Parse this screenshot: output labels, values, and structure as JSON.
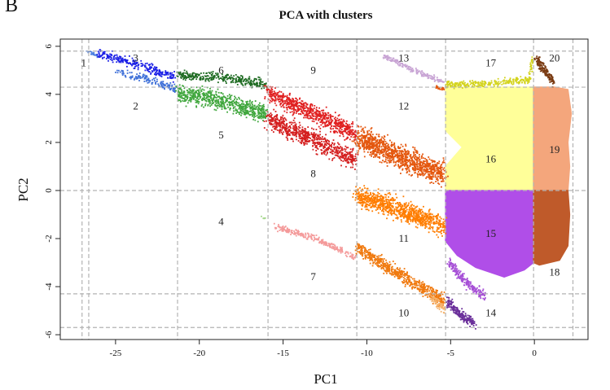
{
  "panel_label": "B",
  "chart_data": {
    "type": "scatter",
    "title": "PCA with clusters",
    "xlabel": "PC1",
    "ylabel": "PC2",
    "xlim": [
      -28.3,
      3.2
    ],
    "ylim": [
      -6.2,
      6.3
    ],
    "x_ticks": [
      -25,
      -20,
      -15,
      -10,
      -5,
      0
    ],
    "x_tick_labels": [
      "-25",
      "-20",
      "-15",
      "-10",
      "-5",
      "0"
    ],
    "y_ticks": [
      -6,
      -4,
      -2,
      0,
      2,
      4,
      6
    ],
    "y_tick_labels": [
      "-6",
      "-4",
      "-2",
      "0",
      "2",
      "4",
      "6"
    ],
    "grid": "dashed cluster boundaries",
    "grid_x": [
      -27.0,
      -26.6,
      -21.3,
      -15.9,
      -10.6,
      -5.3,
      -0.05,
      2.3
    ],
    "grid_y": [
      -5.7,
      -4.3,
      0,
      4.3,
      5.8
    ],
    "regions": [
      {
        "label": "1",
        "x": -26.9,
        "y": 5.3
      },
      {
        "label": "2",
        "x": -23.8,
        "y": 3.5
      },
      {
        "label": "3",
        "x": -23.8,
        "y": 5.5
      },
      {
        "label": "4",
        "x": -18.7,
        "y": -1.3
      },
      {
        "label": "5",
        "x": -18.7,
        "y": 2.3
      },
      {
        "label": "6",
        "x": -18.7,
        "y": 5.0
      },
      {
        "label": "7",
        "x": -13.2,
        "y": -3.6
      },
      {
        "label": "8",
        "x": -13.2,
        "y": 0.7
      },
      {
        "label": "9",
        "x": -13.2,
        "y": 5.0
      },
      {
        "label": "10",
        "x": -7.8,
        "y": -5.1
      },
      {
        "label": "11",
        "x": -7.8,
        "y": -2.0
      },
      {
        "label": "12",
        "x": -7.8,
        "y": 3.5
      },
      {
        "label": "13",
        "x": -7.8,
        "y": 5.5
      },
      {
        "label": "14",
        "x": -2.6,
        "y": -5.1
      },
      {
        "label": "15",
        "x": -2.6,
        "y": -1.8
      },
      {
        "label": "16",
        "x": -2.6,
        "y": 1.3
      },
      {
        "label": "17",
        "x": -2.6,
        "y": 5.3
      },
      {
        "label": "18",
        "x": 1.2,
        "y": -3.4
      },
      {
        "label": "19",
        "x": 1.2,
        "y": 1.7
      },
      {
        "label": "20",
        "x": 1.2,
        "y": 5.5
      }
    ],
    "clusters": [
      {
        "id": "1",
        "color": "#4a7fe0",
        "spine": [
          [
            -26.7,
            5.8
          ],
          [
            -26.1,
            5.6
          ]
        ],
        "width": 0.12,
        "n": 20
      },
      {
        "id": "3",
        "color": "#1a1fe6",
        "spine": [
          [
            -26.0,
            5.7
          ],
          [
            -23.5,
            5.2
          ],
          [
            -21.4,
            4.7
          ]
        ],
        "width": 0.28,
        "n": 260
      },
      {
        "id": "2",
        "color": "#3d6fd8",
        "spine": [
          [
            -25.0,
            5.0
          ],
          [
            -23.0,
            4.6
          ],
          [
            -21.4,
            4.2
          ]
        ],
        "width": 0.25,
        "n": 150
      },
      {
        "id": "6",
        "color": "#1e6b22",
        "spine": [
          [
            -21.3,
            4.8
          ],
          [
            -18.5,
            4.7
          ],
          [
            -16.0,
            4.4
          ]
        ],
        "width": 0.3,
        "n": 330
      },
      {
        "id": "5",
        "color": "#3fa63c",
        "spine": [
          [
            -21.3,
            4.1
          ],
          [
            -18.5,
            3.7
          ],
          [
            -16.0,
            3.2
          ]
        ],
        "width": 0.55,
        "n": 640
      },
      {
        "id": "9",
        "color": "#e02020",
        "spine": [
          [
            -15.9,
            4.1
          ],
          [
            -13.5,
            3.3
          ],
          [
            -10.7,
            2.4
          ]
        ],
        "width": 0.55,
        "n": 700
      },
      {
        "id": "8",
        "color": "#d41f1f",
        "spine": [
          [
            -15.9,
            3.0
          ],
          [
            -13.5,
            2.2
          ],
          [
            -10.7,
            1.3
          ]
        ],
        "width": 0.6,
        "n": 700
      },
      {
        "id": "12",
        "color": "#e4570e",
        "spine": [
          [
            -10.6,
            2.2
          ],
          [
            -8.0,
            1.4
          ],
          [
            -5.4,
            0.7
          ]
        ],
        "width": 0.75,
        "n": 1100
      },
      {
        "id": "11",
        "color": "#ff7d00",
        "spine": [
          [
            -10.6,
            -0.2
          ],
          [
            -8.0,
            -0.8
          ],
          [
            -5.4,
            -1.5
          ]
        ],
        "width": 0.6,
        "n": 900
      },
      {
        "id": "13",
        "color": "#c8a4d4",
        "spine": [
          [
            -9.0,
            5.6
          ],
          [
            -7.2,
            5.0
          ],
          [
            -5.4,
            4.5
          ]
        ],
        "width": 0.15,
        "n": 180
      },
      {
        "id": "13b",
        "color": "#e4570e",
        "spine": [
          [
            -5.9,
            4.3
          ],
          [
            -5.4,
            4.2
          ]
        ],
        "width": 0.12,
        "n": 25
      },
      {
        "id": "7",
        "color": "#f49a9a",
        "spine": [
          [
            -15.5,
            -1.5
          ],
          [
            -13.0,
            -2.0
          ],
          [
            -10.7,
            -2.8
          ]
        ],
        "width": 0.2,
        "n": 250
      },
      {
        "id": "10",
        "color": "#f07a10",
        "spine": [
          [
            -10.6,
            -2.4
          ],
          [
            -8.0,
            -3.5
          ],
          [
            -5.4,
            -4.6
          ]
        ],
        "width": 0.4,
        "n": 650
      },
      {
        "id": "10b",
        "color": "#f5b26b",
        "spine": [
          [
            -6.2,
            -4.4
          ],
          [
            -5.3,
            -5.0
          ]
        ],
        "width": 0.25,
        "n": 60
      },
      {
        "id": "14",
        "color": "#a64fd6",
        "spine": [
          [
            -5.1,
            -3.0
          ],
          [
            -4.0,
            -3.9
          ],
          [
            -2.9,
            -4.4
          ]
        ],
        "width": 0.3,
        "n": 220
      },
      {
        "id": "14b",
        "color": "#6a2f9a",
        "spine": [
          [
            -5.2,
            -4.6
          ],
          [
            -4.4,
            -5.2
          ],
          [
            -3.6,
            -5.5
          ]
        ],
        "width": 0.3,
        "n": 200
      },
      {
        "id": "17",
        "color": "#d4d41e",
        "spine": [
          [
            -5.3,
            4.4
          ],
          [
            -2.5,
            4.45
          ],
          [
            -0.3,
            4.6
          ],
          [
            -0.1,
            5.5
          ]
        ],
        "width": 0.2,
        "n": 320
      },
      {
        "id": "20",
        "color": "#7a3b12",
        "spine": [
          [
            0.1,
            5.5
          ],
          [
            0.6,
            5.0
          ],
          [
            1.2,
            4.5
          ]
        ],
        "width": 0.3,
        "n": 160
      },
      {
        "id": "4",
        "color": "#a8d890",
        "spine": [
          [
            -16.3,
            -1.1
          ],
          [
            -16.0,
            -1.2
          ]
        ],
        "width": 0.08,
        "n": 6
      }
    ],
    "blocks": [
      {
        "id": "16",
        "color": "#ffff99",
        "poly": [
          [
            -5.3,
            4.3
          ],
          [
            -0.05,
            4.3
          ],
          [
            -0.05,
            0
          ],
          [
            -5.3,
            0
          ],
          [
            -5.3,
            1.0
          ],
          [
            -4.3,
            1.8
          ],
          [
            -5.3,
            2.5
          ]
        ]
      },
      {
        "id": "19",
        "color": "#f4a67c",
        "poly": [
          [
            -0.05,
            4.3
          ],
          [
            1.2,
            4.3
          ],
          [
            2.0,
            4.2
          ],
          [
            2.2,
            3.2
          ],
          [
            2.0,
            2.0
          ],
          [
            2.1,
            1.0
          ],
          [
            2.0,
            0.0
          ],
          [
            -0.05,
            0.0
          ]
        ]
      },
      {
        "id": "15",
        "color": "#b04ee8",
        "poly": [
          [
            -5.3,
            0
          ],
          [
            -0.05,
            0
          ],
          [
            -0.05,
            -3.0
          ],
          [
            -0.6,
            -3.3
          ],
          [
            -1.8,
            -3.6
          ],
          [
            -3.5,
            -3.2
          ],
          [
            -4.6,
            -2.7
          ],
          [
            -5.3,
            -2.1
          ]
        ]
      },
      {
        "id": "18",
        "color": "#bf5a2a",
        "poly": [
          [
            -0.05,
            0
          ],
          [
            2.0,
            0
          ],
          [
            2.1,
            -1.0
          ],
          [
            2.0,
            -2.3
          ],
          [
            1.5,
            -2.9
          ],
          [
            0.3,
            -3.1
          ],
          [
            -0.05,
            -3.0
          ]
        ]
      }
    ]
  }
}
